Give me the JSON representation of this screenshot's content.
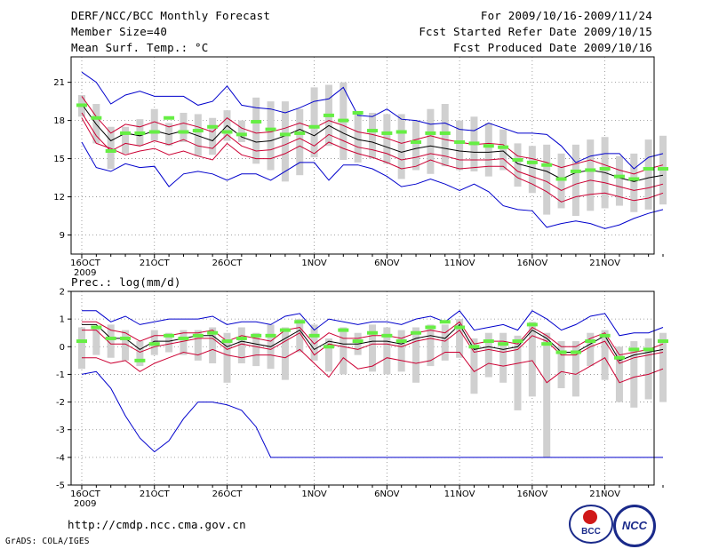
{
  "header": {
    "title": "DERF/NCC/BCC Monthly Forecast",
    "member_size": "Member Size=40",
    "variable": "Mean Surf. Temp.: °C",
    "period": "For 2009/10/16-2009/11/24",
    "started": "Fcst Started Refer Date 2009/10/15",
    "produced": "Fcst Produced Date 2009/10/16"
  },
  "footer": {
    "url": "http://cmdp.ncc.cma.gov.cn",
    "grads": "GrADS: COLA/IGES",
    "logo_bcc_text": "BCC",
    "logo_ncc_text": "NCC"
  },
  "colors": {
    "max_min": "#0000cc",
    "spread": "#cc0033",
    "mean": "#000000",
    "member": "#66ee44",
    "box": "#d0d0d0",
    "grid": "#888888"
  },
  "chart_data": [
    {
      "type": "line",
      "title": "Mean Surf. Temp.: °C",
      "xlabel": "",
      "ylabel": "",
      "ylim": [
        7.5,
        23
      ],
      "yticks": [
        9,
        12,
        15,
        18,
        21
      ],
      "x_tick_labels": [
        "16OCT",
        "21OCT",
        "26OCT",
        "1NOV",
        "6NOV",
        "11NOV",
        "16NOV",
        "21NOV"
      ],
      "x_tick_days": [
        0,
        5,
        10,
        16,
        21,
        26,
        31,
        36
      ],
      "x_year_label": "2009",
      "series": [
        {
          "name": "max",
          "values": [
            21.8,
            21.0,
            19.3,
            20.0,
            20.3,
            19.9,
            19.9,
            19.9,
            19.2,
            19.5,
            20.7,
            19.2,
            19.0,
            18.9,
            18.6,
            19.0,
            19.5,
            19.7,
            20.6,
            18.4,
            18.3,
            18.9,
            18.1,
            18.0,
            17.7,
            17.8,
            17.3,
            17.2,
            17.8,
            17.4,
            17.0,
            17.0,
            16.9,
            16.0,
            14.7,
            15.2,
            15.4,
            15.4,
            14.2,
            15.1,
            15.4
          ]
        },
        {
          "name": "upper",
          "values": [
            19.9,
            18.3,
            17.0,
            17.7,
            17.5,
            17.9,
            17.5,
            17.8,
            17.5,
            17.1,
            18.2,
            17.4,
            17.0,
            17.1,
            17.4,
            17.8,
            17.4,
            18.0,
            17.6,
            17.1,
            16.9,
            16.6,
            16.2,
            16.5,
            16.8,
            16.5,
            16.3,
            16.1,
            16.2,
            16.1,
            15.2,
            15.0,
            14.7,
            14.3,
            14.6,
            14.9,
            14.5,
            14.1,
            13.8,
            14.2,
            14.5
          ]
        },
        {
          "name": "mean",
          "values": [
            19.3,
            17.7,
            16.4,
            17.0,
            16.8,
            17.2,
            16.9,
            17.2,
            16.8,
            16.4,
            17.6,
            16.7,
            16.3,
            16.4,
            16.8,
            17.3,
            16.8,
            17.6,
            17.0,
            16.5,
            16.3,
            15.9,
            15.5,
            15.8,
            16.0,
            15.8,
            15.6,
            15.5,
            15.5,
            15.6,
            14.6,
            14.3,
            14.0,
            13.4,
            13.9,
            14.1,
            13.9,
            13.5,
            13.2,
            13.5,
            13.7
          ]
        },
        {
          "name": "lower",
          "values": [
            18.6,
            16.8,
            15.6,
            16.2,
            16.0,
            16.4,
            16.1,
            16.5,
            16.0,
            15.8,
            16.9,
            16.0,
            15.6,
            15.7,
            16.1,
            16.6,
            16.0,
            16.9,
            16.4,
            15.9,
            15.7,
            15.4,
            14.9,
            15.1,
            15.4,
            15.2,
            14.9,
            14.9,
            14.9,
            15.0,
            14.0,
            13.6,
            13.2,
            12.5,
            13.0,
            13.3,
            13.1,
            12.8,
            12.5,
            12.7,
            13.0
          ]
        },
        {
          "name": "mean-low",
          "values": [
            18.2,
            16.2,
            15.8,
            15.3,
            15.6,
            15.8,
            15.3,
            15.6,
            15.2,
            14.9,
            16.2,
            15.3,
            15.0,
            15.0,
            15.4,
            16.0,
            15.4,
            16.3,
            15.8,
            15.4,
            15.1,
            14.7,
            14.2,
            14.4,
            14.9,
            14.5,
            14.2,
            14.3,
            14.4,
            14.4,
            13.5,
            13.0,
            12.4,
            11.6,
            12.0,
            12.2,
            12.3,
            12.0,
            11.7,
            11.9,
            12.3
          ]
        },
        {
          "name": "min",
          "values": [
            16.3,
            14.3,
            14.0,
            14.6,
            14.3,
            14.4,
            12.8,
            13.8,
            14.0,
            13.8,
            13.3,
            13.8,
            13.8,
            13.3,
            14.0,
            14.7,
            14.7,
            13.3,
            14.5,
            14.5,
            14.2,
            13.6,
            12.8,
            13.0,
            13.4,
            13.0,
            12.5,
            13.0,
            12.4,
            11.3,
            11.0,
            10.9,
            9.6,
            9.9,
            10.1,
            9.9,
            9.5,
            9.8,
            10.3,
            10.7,
            11.0
          ]
        },
        {
          "name": "member-mean",
          "values": [
            19.2,
            18.2,
            15.6,
            17.0,
            17.0,
            17.1,
            18.2,
            17.1,
            17.2,
            17.5,
            17.1,
            16.9,
            17.9,
            17.3,
            16.9,
            17.0,
            17.5,
            18.4,
            18.0,
            18.6,
            17.2,
            17.0,
            17.1,
            16.3,
            17.0,
            17.0,
            16.3,
            16.2,
            16.0,
            15.9,
            14.9,
            14.7,
            14.5,
            13.4,
            14.0,
            14.1,
            14.2,
            13.6,
            13.4,
            14.2,
            14.2
          ]
        },
        {
          "name": "box-top",
          "values": [
            20.0,
            19.3,
            17.5,
            17.5,
            18.1,
            18.9,
            17.8,
            18.6,
            18.5,
            18.2,
            18.8,
            18.0,
            19.8,
            19.5,
            19.5,
            18.9,
            20.6,
            20.8,
            21.0,
            18.5,
            18.6,
            18.5,
            18.5,
            18.0,
            18.9,
            19.3,
            18.0,
            18.3,
            17.8,
            17.3,
            16.2,
            16.0,
            16.1,
            15.4,
            16.1,
            16.5,
            16.7,
            15.2,
            15.4,
            16.5,
            16.8
          ]
        },
        {
          "name": "box-bottom",
          "values": [
            18.3,
            16.2,
            14.2,
            15.4,
            16.0,
            16.4,
            16.0,
            16.3,
            15.2,
            15.3,
            16.4,
            16.3,
            14.6,
            14.1,
            13.2,
            13.7,
            15.1,
            16.0,
            14.9,
            14.7,
            15.0,
            14.6,
            13.4,
            14.1,
            13.8,
            14.4,
            14.1,
            14.0,
            13.6,
            14.1,
            12.8,
            12.3,
            10.6,
            11.1,
            10.5,
            10.9,
            11.1,
            11.3,
            10.8,
            11.0,
            11.4
          ]
        }
      ]
    },
    {
      "type": "line",
      "title": "Prec.: log(mm/d)",
      "xlabel": "",
      "ylabel": "",
      "ylim": [
        -5,
        2
      ],
      "yticks": [
        -5,
        -4,
        -3,
        -2,
        -1,
        0,
        1,
        2
      ],
      "x_tick_labels": [
        "16OCT",
        "21OCT",
        "26OCT",
        "1NOV",
        "6NOV",
        "11NOV",
        "16NOV",
        "21NOV"
      ],
      "x_tick_days": [
        0,
        5,
        10,
        16,
        21,
        26,
        31,
        36
      ],
      "x_year_label": "2009",
      "series": [
        {
          "name": "max",
          "values": [
            1.3,
            1.3,
            0.9,
            1.1,
            0.8,
            0.9,
            1.0,
            1.0,
            1.0,
            1.1,
            0.8,
            0.9,
            0.9,
            0.8,
            1.1,
            1.2,
            0.6,
            1.0,
            0.9,
            0.8,
            0.9,
            0.9,
            0.8,
            1.0,
            1.1,
            0.9,
            1.3,
            0.6,
            0.7,
            0.8,
            0.6,
            1.3,
            1.0,
            0.6,
            0.8,
            1.1,
            1.2,
            0.4,
            0.5,
            0.5,
            0.7
          ]
        },
        {
          "name": "upper",
          "values": [
            0.9,
            0.9,
            0.6,
            0.5,
            0.2,
            0.4,
            0.4,
            0.5,
            0.5,
            0.6,
            0.2,
            0.4,
            0.3,
            0.2,
            0.6,
            0.7,
            0.1,
            0.5,
            0.3,
            0.3,
            0.4,
            0.4,
            0.3,
            0.5,
            0.6,
            0.5,
            0.9,
            0.1,
            0.2,
            0.2,
            0.1,
            0.7,
            0.4,
            0.0,
            0.0,
            0.3,
            0.5,
            -0.3,
            -0.2,
            -0.1,
            0.1
          ]
        },
        {
          "name": "mean",
          "values": [
            0.8,
            0.8,
            0.3,
            0.3,
            -0.1,
            0.2,
            0.2,
            0.3,
            0.4,
            0.4,
            0.0,
            0.2,
            0.1,
            0.0,
            0.3,
            0.6,
            -0.1,
            0.2,
            0.1,
            0.1,
            0.2,
            0.2,
            0.1,
            0.3,
            0.4,
            0.3,
            0.8,
            -0.1,
            0.0,
            -0.1,
            0.0,
            0.6,
            0.3,
            -0.2,
            -0.2,
            0.1,
            0.4,
            -0.5,
            -0.3,
            -0.2,
            -0.1
          ]
        },
        {
          "name": "lower",
          "values": [
            0.6,
            0.6,
            0.1,
            0.1,
            -0.2,
            0.0,
            0.1,
            0.2,
            0.3,
            0.3,
            -0.1,
            0.1,
            0.0,
            -0.1,
            0.2,
            0.5,
            -0.3,
            0.1,
            0.0,
            -0.1,
            0.1,
            0.1,
            0.0,
            0.2,
            0.3,
            0.2,
            0.6,
            -0.2,
            -0.1,
            -0.2,
            -0.1,
            0.4,
            0.2,
            -0.3,
            -0.3,
            0.0,
            0.2,
            -0.6,
            -0.4,
            -0.3,
            -0.2
          ]
        },
        {
          "name": "mean-low",
          "values": [
            -0.4,
            -0.4,
            -0.6,
            -0.5,
            -0.9,
            -0.6,
            -0.4,
            -0.2,
            -0.3,
            -0.1,
            -0.3,
            -0.4,
            -0.3,
            -0.3,
            -0.4,
            -0.1,
            -0.6,
            -1.1,
            -0.4,
            -0.8,
            -0.7,
            -0.4,
            -0.5,
            -0.6,
            -0.5,
            -0.2,
            -0.2,
            -0.9,
            -0.6,
            -0.7,
            -0.6,
            -0.5,
            -1.3,
            -0.9,
            -1.0,
            -0.7,
            -0.4,
            -1.3,
            -1.1,
            -1.0,
            -0.8
          ]
        },
        {
          "name": "min",
          "values": [
            -1.0,
            -0.9,
            -1.5,
            -2.5,
            -3.3,
            -3.8,
            -3.4,
            -2.6,
            -2.0,
            -2.0,
            -2.1,
            -2.3,
            -2.9,
            -4.0,
            -4.0,
            -4.0,
            -4.0,
            -4.0,
            -4.0,
            -4.0,
            -4.0,
            -4.0,
            -4.0,
            -4.0,
            -4.0,
            -4.0,
            -4.0,
            -4.0,
            -4.0,
            -4.0,
            -4.0,
            -4.0,
            -4.0,
            -4.0,
            -4.0,
            -4.0,
            -4.0,
            -4.0,
            -4.0,
            -4.0,
            -4.0
          ]
        },
        {
          "name": "member-mean",
          "values": [
            0.2,
            0.7,
            0.3,
            0.3,
            -0.5,
            0.1,
            0.4,
            0.3,
            0.4,
            0.5,
            0.2,
            0.3,
            0.4,
            0.4,
            0.6,
            0.9,
            0.4,
            0.0,
            0.6,
            0.2,
            0.5,
            0.4,
            0.2,
            0.5,
            0.7,
            0.9,
            0.7,
            0.0,
            0.2,
            0.1,
            0.2,
            0.8,
            0.1,
            -0.2,
            -0.2,
            0.2,
            0.4,
            -0.4,
            -0.1,
            -0.1,
            0.2
          ]
        },
        {
          "name": "box-top",
          "values": [
            0.7,
            0.7,
            0.8,
            0.6,
            0.2,
            0.6,
            0.5,
            0.6,
            0.6,
            0.7,
            0.5,
            0.7,
            0.5,
            0.8,
            0.7,
            1.0,
            0.8,
            0.3,
            0.7,
            0.5,
            0.8,
            0.7,
            0.6,
            0.7,
            0.8,
            0.8,
            1.0,
            0.3,
            0.5,
            0.5,
            0.4,
            0.9,
            0.5,
            0.2,
            0.2,
            0.5,
            0.6,
            0.0,
            0.2,
            0.3,
            0.5
          ]
        },
        {
          "name": "box-bottom",
          "values": [
            -0.8,
            -0.3,
            -0.4,
            -0.5,
            -0.7,
            -0.3,
            -0.2,
            -0.3,
            -0.5,
            -0.6,
            -1.3,
            -0.6,
            -0.7,
            -0.8,
            -1.2,
            -0.2,
            -0.5,
            -0.9,
            -1.0,
            -0.3,
            -0.9,
            -1.0,
            -0.9,
            -1.3,
            -0.7,
            -0.5,
            -0.4,
            -1.7,
            -1.1,
            -1.3,
            -2.3,
            -1.8,
            -4.0,
            -1.5,
            -1.8,
            -0.7,
            -1.2,
            -2.0,
            -2.2,
            -1.9,
            -2.0
          ]
        }
      ]
    }
  ]
}
